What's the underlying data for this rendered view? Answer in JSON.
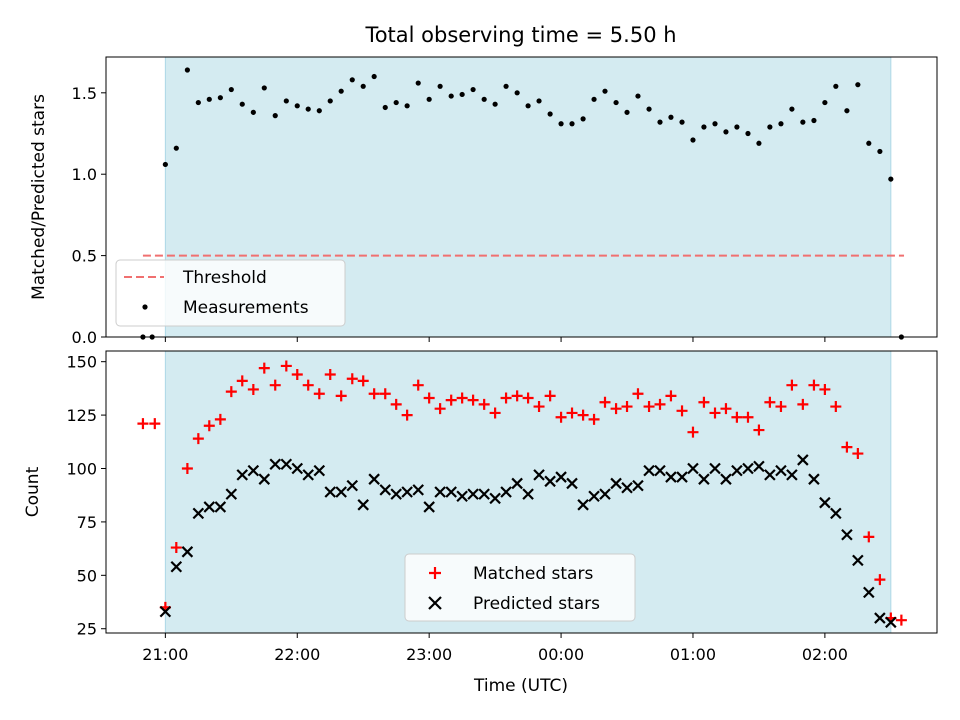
{
  "chart_data": [
    {
      "type": "scatter",
      "title": "Total observing time = 5.50 h",
      "xlabel": "",
      "ylabel": "Matched/Predicted stars",
      "ylim": [
        0.0,
        1.72
      ],
      "xlim": [
        -0.45,
        5.85
      ],
      "yticks": [
        0.0,
        0.5,
        1.0,
        1.5
      ],
      "ytick_labels": [
        "0.0",
        "0.5",
        "1.0",
        "1.5"
      ],
      "shaded_interval": [
        0.0,
        5.5
      ],
      "shade_color": "#d4ebf1",
      "legend_position": "lower-left",
      "threshold": {
        "name": "Threshold",
        "value": 0.5,
        "x_range": [
          -0.17,
          5.6
        ],
        "color": "#f07070"
      },
      "series": [
        {
          "name": "Measurements",
          "color": "#000000",
          "x": [
            -0.17,
            -0.1,
            0.0,
            0.083,
            0.167,
            0.25,
            0.333,
            0.417,
            0.5,
            0.583,
            0.667,
            0.75,
            0.833,
            0.917,
            1.0,
            1.083,
            1.167,
            1.25,
            1.333,
            1.417,
            1.5,
            1.583,
            1.667,
            1.75,
            1.833,
            1.917,
            2.0,
            2.083,
            2.167,
            2.25,
            2.333,
            2.417,
            2.5,
            2.583,
            2.667,
            2.75,
            2.833,
            2.917,
            3.0,
            3.083,
            3.167,
            3.25,
            3.333,
            3.417,
            3.5,
            3.583,
            3.667,
            3.75,
            3.833,
            3.917,
            4.0,
            4.083,
            4.167,
            4.25,
            4.333,
            4.417,
            4.5,
            4.583,
            4.667,
            4.75,
            4.833,
            4.917,
            5.0,
            5.083,
            5.167,
            5.25,
            5.333,
            5.417,
            5.5,
            5.58
          ],
          "y": [
            0.0,
            0.0,
            1.06,
            1.16,
            1.64,
            1.44,
            1.46,
            1.47,
            1.52,
            1.43,
            1.38,
            1.53,
            1.36,
            1.45,
            1.42,
            1.4,
            1.39,
            1.45,
            1.51,
            1.58,
            1.54,
            1.6,
            1.41,
            1.44,
            1.42,
            1.56,
            1.46,
            1.54,
            1.48,
            1.49,
            1.52,
            1.46,
            1.43,
            1.54,
            1.5,
            1.42,
            1.45,
            1.37,
            1.31,
            1.31,
            1.34,
            1.46,
            1.51,
            1.44,
            1.38,
            1.48,
            1.4,
            1.32,
            1.35,
            1.32,
            1.21,
            1.29,
            1.31,
            1.26,
            1.29,
            1.25,
            1.19,
            1.29,
            1.31,
            1.4,
            1.32,
            1.33,
            1.44,
            1.54,
            1.39,
            1.55,
            1.19,
            1.14,
            0.97,
            0.0
          ]
        }
      ]
    },
    {
      "type": "scatter",
      "xlabel": "Time (UTC)",
      "ylabel": "Count",
      "ylim": [
        23,
        155
      ],
      "xlim": [
        -0.45,
        5.85
      ],
      "yticks": [
        25,
        50,
        75,
        100,
        125,
        150
      ],
      "ytick_labels": [
        "25",
        "50",
        "75",
        "100",
        "125",
        "150"
      ],
      "xticks": [
        0,
        1,
        2,
        3,
        4,
        5
      ],
      "xtick_labels": [
        "21:00",
        "22:00",
        "23:00",
        "00:00",
        "01:00",
        "02:00"
      ],
      "shaded_interval": [
        0.0,
        5.5
      ],
      "shade_color": "#d4ebf1",
      "legend_position": "lower-center",
      "series": [
        {
          "name": "Matched stars",
          "marker": "plus",
          "color": "#ff0000",
          "x": [
            -0.17,
            -0.08,
            0.0,
            0.083,
            0.167,
            0.25,
            0.333,
            0.417,
            0.5,
            0.583,
            0.667,
            0.75,
            0.833,
            0.917,
            1.0,
            1.083,
            1.167,
            1.25,
            1.333,
            1.417,
            1.5,
            1.583,
            1.667,
            1.75,
            1.833,
            1.917,
            2.0,
            2.083,
            2.167,
            2.25,
            2.333,
            2.417,
            2.5,
            2.583,
            2.667,
            2.75,
            2.833,
            2.917,
            3.0,
            3.083,
            3.167,
            3.25,
            3.333,
            3.417,
            3.5,
            3.583,
            3.667,
            3.75,
            3.833,
            3.917,
            4.0,
            4.083,
            4.167,
            4.25,
            4.333,
            4.417,
            4.5,
            4.583,
            4.667,
            4.75,
            4.833,
            4.917,
            5.0,
            5.083,
            5.167,
            5.25,
            5.333,
            5.417,
            5.5,
            5.58
          ],
          "y": [
            121,
            121,
            35,
            63,
            100,
            114,
            120,
            123,
            136,
            141,
            137,
            147,
            139,
            148,
            144,
            139,
            135,
            144,
            134,
            142,
            141,
            135,
            135,
            130,
            125,
            139,
            133,
            128,
            132,
            133,
            132,
            130,
            126,
            133,
            134,
            133,
            129,
            134,
            124,
            126,
            125,
            123,
            131,
            128,
            129,
            135,
            129,
            130,
            134,
            127,
            117,
            131,
            126,
            128,
            124,
            124,
            118,
            131,
            129,
            139,
            130,
            139,
            137,
            129,
            110,
            107,
            68,
            48,
            30,
            29
          ]
        },
        {
          "name": "Predicted stars",
          "marker": "x",
          "color": "#000000",
          "x": [
            0.0,
            0.083,
            0.167,
            0.25,
            0.333,
            0.417,
            0.5,
            0.583,
            0.667,
            0.75,
            0.833,
            0.917,
            1.0,
            1.083,
            1.167,
            1.25,
            1.333,
            1.417,
            1.5,
            1.583,
            1.667,
            1.75,
            1.833,
            1.917,
            2.0,
            2.083,
            2.167,
            2.25,
            2.333,
            2.417,
            2.5,
            2.583,
            2.667,
            2.75,
            2.833,
            2.917,
            3.0,
            3.083,
            3.167,
            3.25,
            3.333,
            3.417,
            3.5,
            3.583,
            3.667,
            3.75,
            3.833,
            3.917,
            4.0,
            4.083,
            4.167,
            4.25,
            4.333,
            4.417,
            4.5,
            4.583,
            4.667,
            4.75,
            4.833,
            4.917,
            5.0,
            5.083,
            5.167,
            5.25,
            5.333,
            5.417,
            5.5
          ],
          "y": [
            33,
            54,
            61,
            79,
            82,
            82,
            88,
            97,
            99,
            95,
            102,
            102,
            100,
            97,
            99,
            89,
            89,
            92,
            83,
            95,
            90,
            88,
            89,
            90,
            82,
            89,
            89,
            87,
            88,
            88,
            86,
            89,
            93,
            88,
            97,
            94,
            96,
            93,
            83,
            87,
            88,
            93,
            91,
            92,
            99,
            99,
            96,
            96,
            100,
            95,
            100,
            95,
            99,
            100,
            101,
            97,
            99,
            97,
            104,
            95,
            84,
            79,
            69,
            57,
            42,
            30,
            28
          ]
        }
      ]
    }
  ]
}
